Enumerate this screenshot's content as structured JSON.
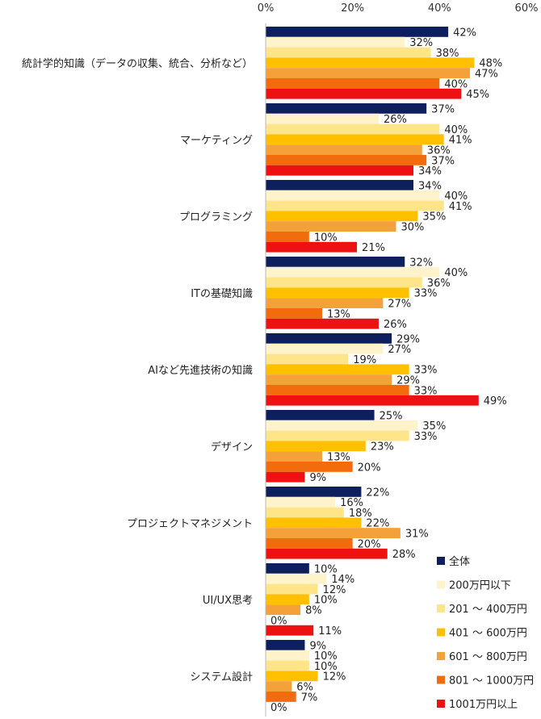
{
  "chart_data": {
    "type": "bar",
    "orientation": "horizontal",
    "xlim": [
      0,
      60
    ],
    "xticks": [
      "0%",
      "20%",
      "40%",
      "60%"
    ],
    "categories": [
      "統計学的知識（データの収集、統合、分析など）",
      "マーケティング",
      "プログラミング",
      "ITの基礎知識",
      "AIなど先進技術の知識",
      "デザイン",
      "プロジェクトマネジメント",
      "UI/UX思考",
      "システム設計"
    ],
    "series": [
      {
        "name": "全体",
        "color": "#0d1f5c",
        "values": [
          42,
          37,
          34,
          32,
          29,
          25,
          22,
          10,
          9
        ]
      },
      {
        "name": "200万円以下",
        "color": "#fff3cc",
        "values": [
          32,
          26,
          40,
          40,
          27,
          35,
          16,
          14,
          10
        ]
      },
      {
        "name": "201 ～ 400万円",
        "color": "#ffe58a",
        "values": [
          38,
          40,
          41,
          36,
          19,
          33,
          18,
          12,
          10
        ]
      },
      {
        "name": "401 ～ 600万円",
        "color": "#ffc000",
        "values": [
          48,
          41,
          35,
          33,
          33,
          23,
          22,
          10,
          12
        ]
      },
      {
        "name": "601 ～ 800万円",
        "color": "#f4a13a",
        "values": [
          47,
          36,
          30,
          27,
          29,
          13,
          31,
          8,
          6
        ]
      },
      {
        "name": "801 ～ 1000万円",
        "color": "#f26b0c",
        "values": [
          40,
          37,
          10,
          13,
          33,
          20,
          20,
          0,
          7
        ]
      },
      {
        "name": "1001万円以上",
        "color": "#ee1111",
        "values": [
          45,
          34,
          21,
          26,
          49,
          9,
          28,
          11,
          0
        ]
      }
    ],
    "value_suffix": "%",
    "legend": "bottom-right",
    "grid": false
  }
}
